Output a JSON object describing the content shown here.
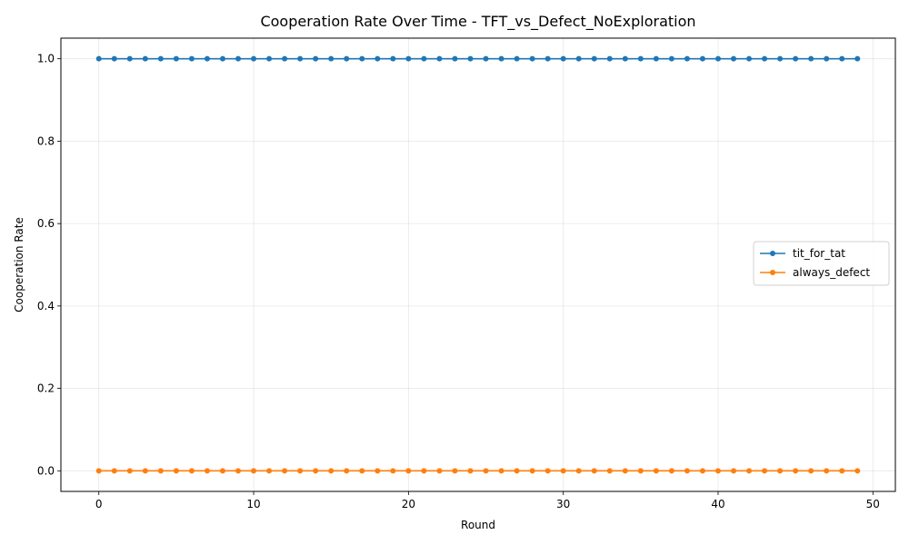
{
  "chart_data": {
    "type": "line",
    "title": "Cooperation Rate Over Time - TFT_vs_Defect_NoExploration",
    "xlabel": "Round",
    "ylabel": "Cooperation Rate",
    "xlim": [
      -2.45,
      51.45
    ],
    "ylim": [
      -0.05,
      1.05
    ],
    "xticks": [
      0,
      10,
      20,
      30,
      40,
      50
    ],
    "xtick_labels": [
      "0",
      "10",
      "20",
      "30",
      "40",
      "50"
    ],
    "yticks": [
      0.0,
      0.2,
      0.4,
      0.6,
      0.8,
      1.0
    ],
    "ytick_labels": [
      "0.0",
      "0.2",
      "0.4",
      "0.6",
      "0.8",
      "1.0"
    ],
    "grid": true,
    "legend_position": "center-right",
    "x": [
      0,
      1,
      2,
      3,
      4,
      5,
      6,
      7,
      8,
      9,
      10,
      11,
      12,
      13,
      14,
      15,
      16,
      17,
      18,
      19,
      20,
      21,
      22,
      23,
      24,
      25,
      26,
      27,
      28,
      29,
      30,
      31,
      32,
      33,
      34,
      35,
      36,
      37,
      38,
      39,
      40,
      41,
      42,
      43,
      44,
      45,
      46,
      47,
      48,
      49
    ],
    "series": [
      {
        "name": "tit_for_tat",
        "color": "#1f77b4",
        "marker": "circle",
        "values": [
          1,
          1,
          1,
          1,
          1,
          1,
          1,
          1,
          1,
          1,
          1,
          1,
          1,
          1,
          1,
          1,
          1,
          1,
          1,
          1,
          1,
          1,
          1,
          1,
          1,
          1,
          1,
          1,
          1,
          1,
          1,
          1,
          1,
          1,
          1,
          1,
          1,
          1,
          1,
          1,
          1,
          1,
          1,
          1,
          1,
          1,
          1,
          1,
          1,
          1
        ]
      },
      {
        "name": "always_defect",
        "color": "#ff7f0e",
        "marker": "circle",
        "values": [
          0,
          0,
          0,
          0,
          0,
          0,
          0,
          0,
          0,
          0,
          0,
          0,
          0,
          0,
          0,
          0,
          0,
          0,
          0,
          0,
          0,
          0,
          0,
          0,
          0,
          0,
          0,
          0,
          0,
          0,
          0,
          0,
          0,
          0,
          0,
          0,
          0,
          0,
          0,
          0,
          0,
          0,
          0,
          0,
          0,
          0,
          0,
          0,
          0,
          0
        ]
      }
    ]
  }
}
